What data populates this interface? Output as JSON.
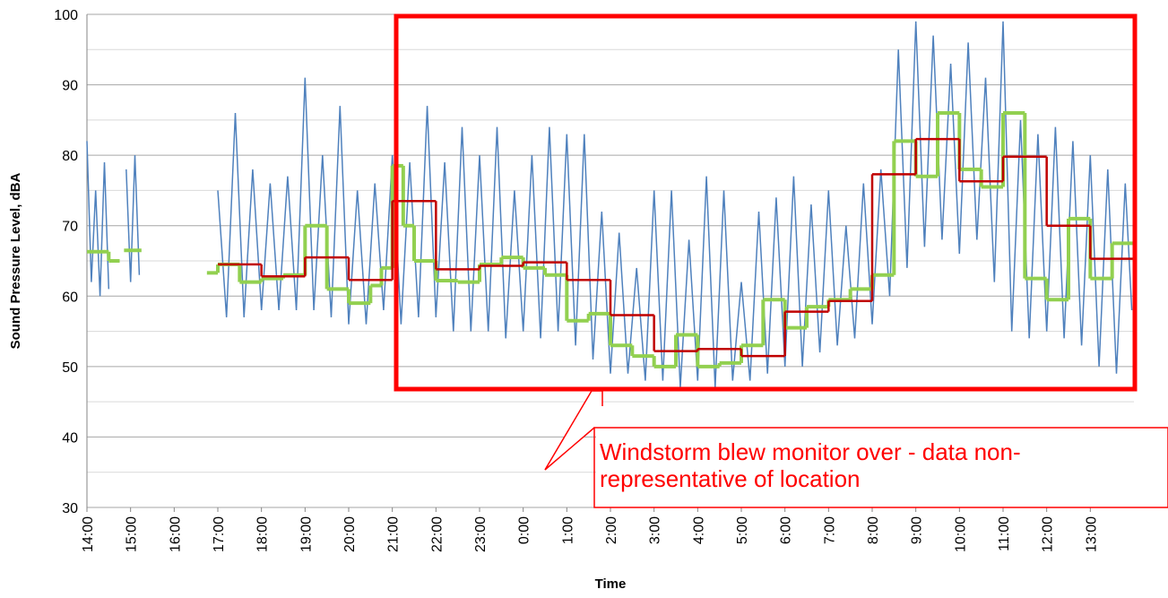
{
  "chart_data": {
    "type": "line",
    "x_label": "Time",
    "y_label": "Sound Pressure Level, dBA",
    "annotation": "Windstorm blew monitor over - data non-representative of location",
    "xlim": [
      0,
      24
    ],
    "xticks": [
      {
        "value": 0,
        "label": "14:00"
      },
      {
        "value": 1,
        "label": "15:00"
      },
      {
        "value": 2,
        "label": "16:00"
      },
      {
        "value": 3,
        "label": "17:00"
      },
      {
        "value": 4,
        "label": "18:00"
      },
      {
        "value": 5,
        "label": "19:00"
      },
      {
        "value": 6,
        "label": "20:00"
      },
      {
        "value": 7,
        "label": "21:00"
      },
      {
        "value": 8,
        "label": "22:00"
      },
      {
        "value": 9,
        "label": "23:00"
      },
      {
        "value": 10,
        "label": "0:00"
      },
      {
        "value": 11,
        "label": "1:00"
      },
      {
        "value": 12,
        "label": "2:00"
      },
      {
        "value": 13,
        "label": "3:00"
      },
      {
        "value": 14,
        "label": "4:00"
      },
      {
        "value": 15,
        "label": "5:00"
      },
      {
        "value": 16,
        "label": "6:00"
      },
      {
        "value": 17,
        "label": "7:00"
      },
      {
        "value": 18,
        "label": "8:00"
      },
      {
        "value": 19,
        "label": "9:00"
      },
      {
        "value": 20,
        "label": "10:00"
      },
      {
        "value": 21,
        "label": "11:00"
      },
      {
        "value": 22,
        "label": "12:00"
      },
      {
        "value": 23,
        "label": "13:00"
      }
    ],
    "ylim": [
      30,
      100
    ],
    "yticks": [
      30,
      40,
      50,
      60,
      70,
      80,
      90,
      100
    ],
    "y_minor_ticks": [
      35,
      45,
      55,
      65,
      75,
      85,
      95
    ],
    "grid": true,
    "series": [
      {
        "color": "#4f81bd",
        "style": "line",
        "x": [
          0,
          0.1,
          0.2,
          0.3,
          0.4,
          0.5,
          0.6,
          0.9,
          1.0,
          1.1,
          1.2,
          1.3,
          3.0,
          3.2,
          3.4,
          3.6,
          3.8,
          4.0,
          4.2,
          4.4,
          4.6,
          4.8,
          5.0,
          5.2,
          5.4,
          5.6,
          5.8,
          6.0,
          6.2,
          6.4,
          6.6,
          6.8,
          7.0,
          7.2,
          7.4,
          7.6,
          7.8,
          8.0,
          8.2,
          8.4,
          8.6,
          8.8,
          9.0,
          9.2,
          9.4,
          9.6,
          9.8,
          10.0,
          10.2,
          10.4,
          10.6,
          10.8,
          11.0,
          11.2,
          11.4,
          11.6,
          11.8,
          12.0,
          12.2,
          12.4,
          12.6,
          12.8,
          13.0,
          13.2,
          13.4,
          13.6,
          13.8,
          14.0,
          14.2,
          14.4,
          14.6,
          14.8,
          15.0,
          15.2,
          15.4,
          15.6,
          15.8,
          16.0,
          16.2,
          16.4,
          16.6,
          16.8,
          17.0,
          17.2,
          17.4,
          17.6,
          17.8,
          18.0,
          18.2,
          18.4,
          18.6,
          18.8,
          19.0,
          19.2,
          19.4,
          19.6,
          19.8,
          20.0,
          20.2,
          20.4,
          20.6,
          20.8,
          21.0,
          21.2,
          21.4,
          21.6,
          21.8,
          22.0,
          22.2,
          22.4,
          22.6,
          22.8,
          23.0,
          23.2,
          23.4,
          23.6,
          23.8,
          23.95
        ],
        "values": [
          82,
          62,
          75,
          60,
          79,
          61,
          null,
          78,
          62,
          80,
          63,
          null,
          75,
          57,
          86,
          57,
          78,
          58,
          76,
          58,
          77,
          58,
          91,
          58,
          80,
          57,
          87,
          56,
          75,
          56,
          76,
          58,
          80,
          56,
          79,
          57,
          87,
          57,
          79,
          55,
          84,
          55,
          80,
          55,
          84,
          54,
          75,
          55,
          80,
          54,
          84,
          55,
          83,
          53,
          83,
          51,
          72,
          49,
          69,
          49,
          64,
          48,
          75,
          48,
          75,
          47,
          68,
          48,
          77,
          47,
          75,
          48,
          62,
          48,
          72,
          49,
          74,
          50,
          77,
          50,
          73,
          52,
          75,
          53,
          70,
          54,
          76,
          56,
          78,
          60,
          95,
          64,
          99,
          67,
          97,
          68,
          93,
          66,
          96,
          68,
          91,
          62,
          99,
          55,
          85,
          54,
          83,
          55,
          84,
          54,
          82,
          53,
          80,
          50,
          78,
          49,
          76,
          58
        ]
      },
      {
        "color": "#92d050",
        "style": "step",
        "x": [
          0,
          0.5,
          0.75,
          0.85,
          1.25,
          2.75,
          3.0,
          3.5,
          4.0,
          4.5,
          5.0,
          5.5,
          6.0,
          6.5,
          6.75,
          7.0,
          7.25,
          7.5,
          8.0,
          8.5,
          9.0,
          9.5,
          10.0,
          10.5,
          11.0,
          11.5,
          12.0,
          12.5,
          13.0,
          13.5,
          14.0,
          14.5,
          15.0,
          15.5,
          16.0,
          16.5,
          17.0,
          17.5,
          18.0,
          18.5,
          19.0,
          19.5,
          20.0,
          20.5,
          21.0,
          21.5,
          22.0,
          22.5,
          23.0,
          23.5
        ],
        "values": [
          66.3,
          65,
          null,
          66.5,
          null,
          63.3,
          64.5,
          62,
          62.5,
          63,
          70,
          61,
          59,
          61.5,
          64,
          78.5,
          70,
          65,
          62.2,
          62,
          64.5,
          65.5,
          64,
          63,
          56.5,
          57.5,
          53,
          51.5,
          50,
          54.5,
          50,
          50.5,
          53,
          59.5,
          55.5,
          58.5,
          59.5,
          61,
          63,
          82,
          77,
          86,
          78,
          75.5,
          86,
          62.5,
          59.5,
          71,
          62.5,
          67.5
        ]
      },
      {
        "color": "#c00000",
        "style": "step",
        "x": [
          3,
          4,
          5,
          6,
          7,
          8,
          9,
          10,
          11,
          12,
          13,
          14,
          15,
          16,
          17,
          18,
          19,
          20,
          21,
          22,
          23
        ],
        "values": [
          64.5,
          62.8,
          65.5,
          62.3,
          73.5,
          63.8,
          64.3,
          64.8,
          62.3,
          57.3,
          52.2,
          52.5,
          51.5,
          57.8,
          59.3,
          77.3,
          82.3,
          76.3,
          79.8,
          70,
          65.3
        ]
      }
    ]
  }
}
